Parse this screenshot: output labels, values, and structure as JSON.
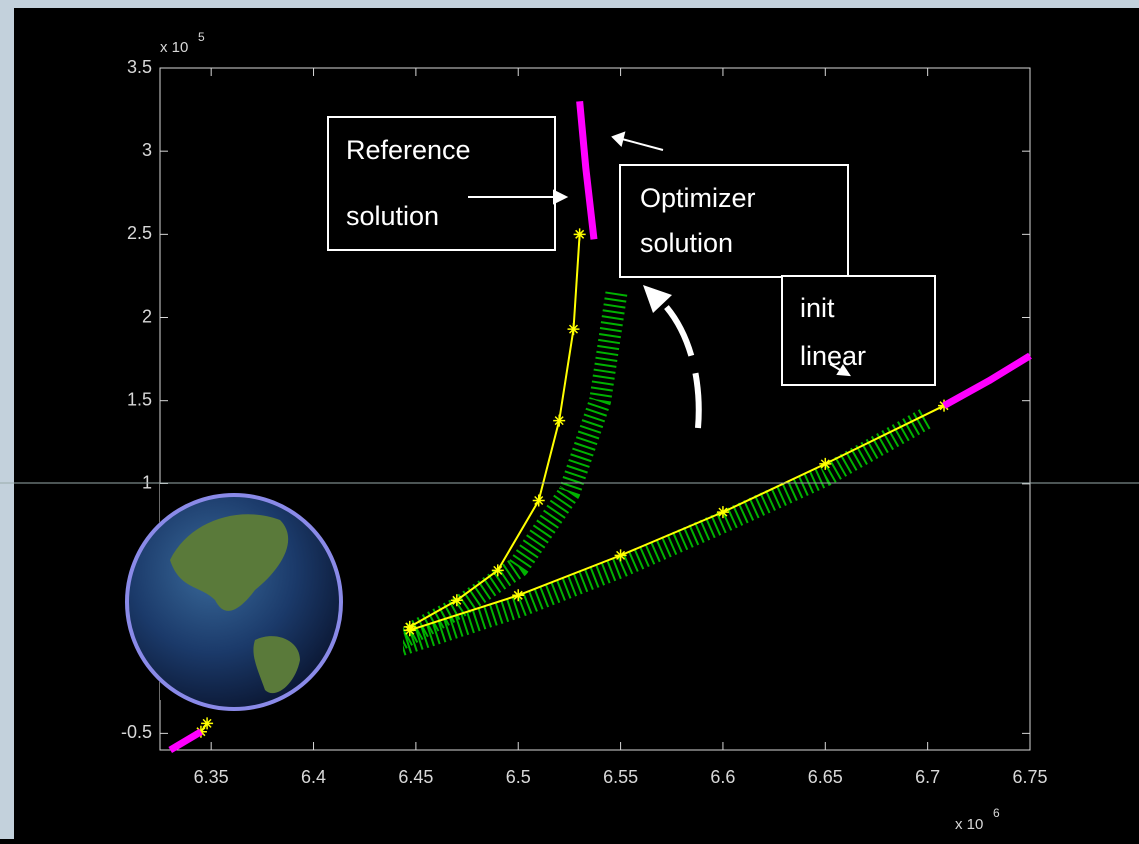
{
  "chart_data": {
    "type": "line",
    "xlim": [
      6.325,
      6.75
    ],
    "ylim": [
      -0.6,
      3.5
    ],
    "xticks": [
      6.35,
      6.4,
      6.45,
      6.5,
      6.55,
      6.6,
      6.65,
      6.7,
      6.75
    ],
    "yticks": [
      -0.5,
      1,
      1.5,
      2,
      2.5,
      3,
      3.5
    ],
    "x_multiplier": {
      "base": "x 10",
      "exponent": "6"
    },
    "y_multiplier": {
      "base": "x 10",
      "exponent": "5"
    },
    "series": [
      {
        "color": "#00ee00",
        "marker": "none",
        "x": [
          6.44,
          6.47,
          6.5,
          6.525,
          6.54,
          6.548
        ],
        "values": [
          0.05,
          0.25,
          0.5,
          0.95,
          1.5,
          2.15
        ]
      },
      {
        "color": "#00ee00",
        "marker": "none",
        "x": [
          6.44,
          6.5,
          6.55,
          6.6,
          6.65,
          6.7
        ],
        "values": [
          0.02,
          0.26,
          0.5,
          0.77,
          1.05,
          1.4
        ]
      },
      {
        "color": "#ffff00",
        "marker": "star",
        "x": [
          6.447,
          6.47,
          6.49,
          6.51,
          6.52,
          6.527,
          6.53
        ],
        "values": [
          0.14,
          0.3,
          0.48,
          0.9,
          1.38,
          1.93,
          2.5
        ]
      },
      {
        "color": "#ffff00",
        "marker": "star",
        "x": [
          6.447,
          6.5,
          6.55,
          6.6,
          6.65,
          6.708
        ],
        "values": [
          0.12,
          0.33,
          0.57,
          0.83,
          1.12,
          1.47
        ]
      },
      {
        "color": "#ffff00",
        "marker": "star",
        "x": [
          6.345,
          6.348
        ],
        "values": [
          -0.49,
          -0.44
        ]
      },
      {
        "color": "#ff00ff",
        "marker": "none",
        "x": [
          6.53,
          6.533,
          6.537
        ],
        "values": [
          3.3,
          2.9,
          2.47
        ]
      },
      {
        "color": "#ff00ff",
        "marker": "none",
        "x": [
          6.708,
          6.73,
          6.75
        ],
        "values": [
          1.47,
          1.62,
          1.77
        ]
      },
      {
        "color": "#ff00ff",
        "marker": "none",
        "x": [
          6.33,
          6.345
        ],
        "values": [
          -0.6,
          -0.49
        ]
      }
    ],
    "annotations": [
      {
        "lines": [
          "Reference",
          "solution"
        ]
      },
      {
        "lines": [
          "Optimizer",
          "solution"
        ]
      },
      {
        "lines": [
          "init",
          "linear"
        ]
      }
    ]
  }
}
